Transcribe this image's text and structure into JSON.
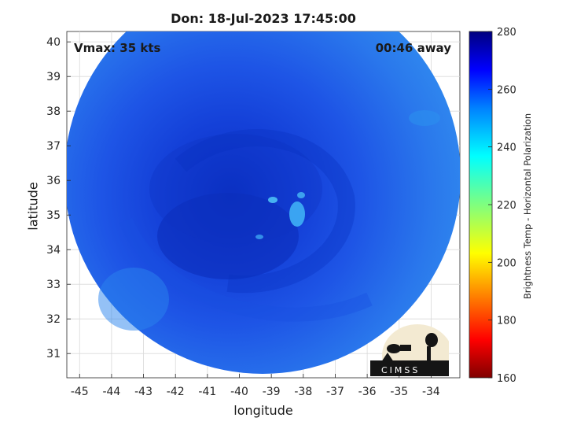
{
  "title": "Don: 18-Jul-2023 17:45:00",
  "vmax_label": "Vmax: 35 kts",
  "time_away_label": "00:46 away",
  "x_axis": {
    "label": "longitude",
    "ticks": [
      -45,
      -44,
      -43,
      -42,
      -41,
      -40,
      -39,
      -38,
      -37,
      -36,
      -35,
      -34
    ],
    "range": [
      -45.4,
      -33.1
    ]
  },
  "y_axis": {
    "label": "latitude",
    "ticks": [
      31,
      32,
      33,
      34,
      35,
      36,
      37,
      38,
      39,
      40
    ],
    "range": [
      30.3,
      40.3
    ]
  },
  "colorbar": {
    "label": "Brightness Temp - Horizontal Polarization",
    "ticks": [
      160,
      180,
      200,
      220,
      240,
      260,
      280
    ],
    "range": [
      160,
      280
    ],
    "colormap": "jet"
  },
  "logo_text": "CIMSS",
  "colors": {
    "storm_base": "#1d5ce8",
    "storm_dark": "#0a30c8",
    "storm_light": "#2a8cf0"
  }
}
